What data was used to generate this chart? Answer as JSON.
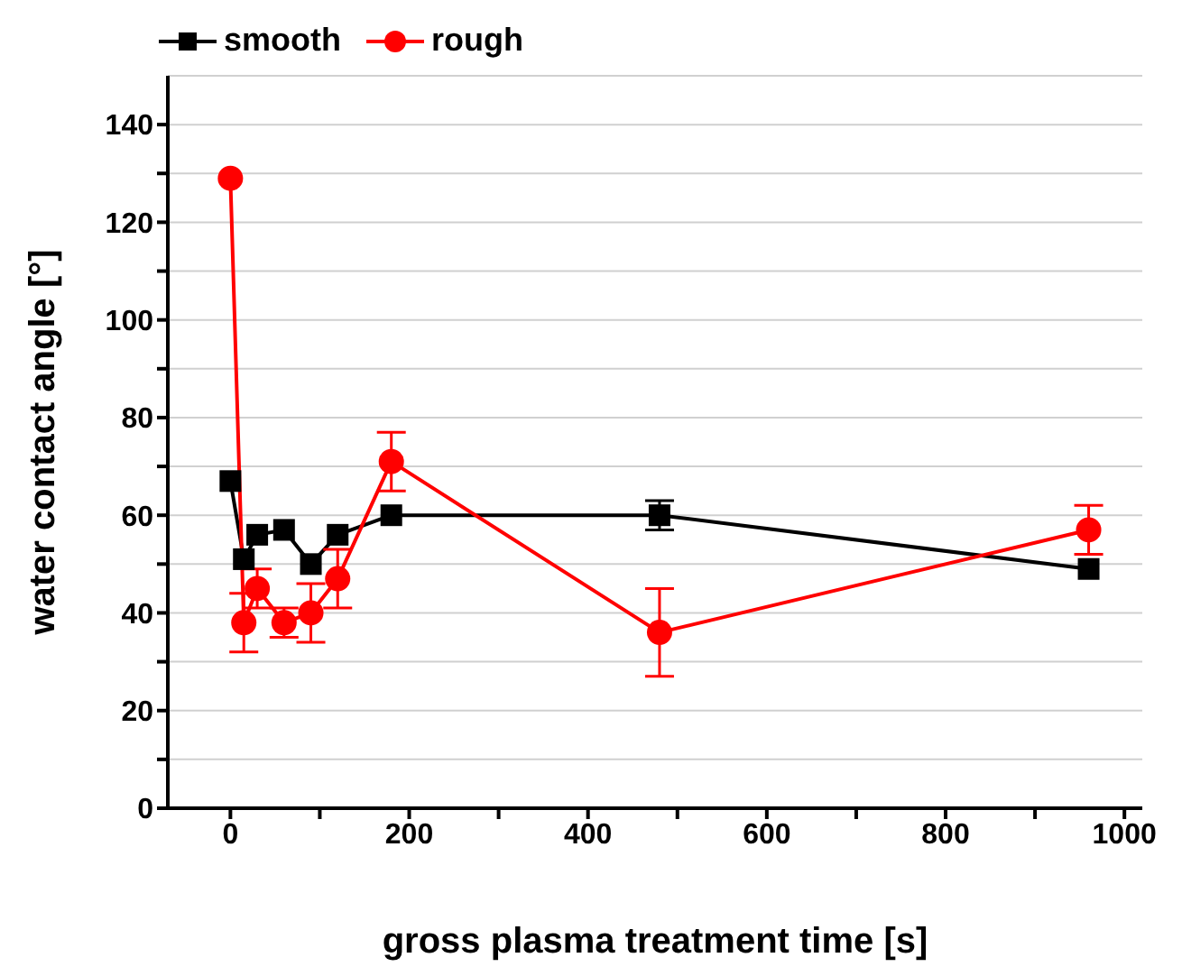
{
  "chart_data": {
    "type": "line",
    "xlabel": "gross plasma treatment time [s]",
    "ylabel": "water contact angle [°]",
    "x": [
      0,
      15,
      30,
      60,
      90,
      120,
      180,
      480,
      960
    ],
    "series": [
      {
        "name": "smooth",
        "color": "#000000",
        "marker": "square",
        "values": [
          67,
          51,
          56,
          57,
          50,
          56,
          60,
          60,
          49
        ],
        "errors": [
          null,
          null,
          null,
          null,
          null,
          null,
          null,
          3,
          null
        ]
      },
      {
        "name": "rough",
        "color": "#ff0000",
        "marker": "circle",
        "values": [
          129,
          38,
          45,
          38,
          40,
          47,
          71,
          36,
          57
        ],
        "errors": [
          null,
          6,
          4,
          3,
          6,
          6,
          6,
          9,
          5
        ]
      }
    ],
    "xlim": [
      -70,
      1020
    ],
    "xticks": [
      0,
      {
        "value": 100,
        "label": null
      },
      200,
      {
        "value": 300,
        "label": null
      },
      400,
      {
        "value": 500,
        "label": null
      },
      600,
      {
        "value": 700,
        "label": null
      },
      800,
      {
        "value": 900,
        "label": null
      },
      1000
    ],
    "ylim": [
      0,
      150
    ],
    "yticks": [
      0,
      {
        "value": 10,
        "label": null
      },
      20,
      {
        "value": 30,
        "label": null
      },
      40,
      {
        "value": 50,
        "label": null
      },
      60,
      {
        "value": 70,
        "label": null
      },
      80,
      {
        "value": 90,
        "label": null
      },
      100,
      {
        "value": 110,
        "label": null
      },
      120,
      {
        "value": 130,
        "label": null
      },
      140
    ],
    "grid": "y",
    "legend": "top left",
    "line_style": "solid"
  }
}
